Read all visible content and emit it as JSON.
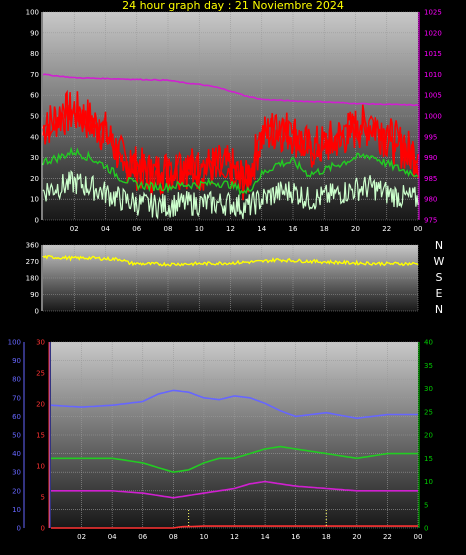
{
  "title": "24 hour graph day : 21 Noviembre 2024",
  "colors": {
    "temperature": "#ff0000",
    "humidity": "#00c000",
    "wind_gust": "#ff0000",
    "wind_speed": "#22cc22",
    "wind_lull": "#ccffcc",
    "pressure": "#d020d0",
    "direction": "#ffff00",
    "sun_marker": "#ffff66",
    "axis_white": "#ffffff",
    "axis_magenta": "#ff00ff",
    "axis_blue": "#6666ff",
    "axis_red": "#ff3333",
    "axis_green": "#00cc00"
  },
  "chart_data": [
    {
      "type": "line",
      "id": "wind-pressure",
      "x_ticks": [
        "02",
        "04",
        "06",
        "08",
        "10",
        "12",
        "14",
        "16",
        "18",
        "20",
        "22",
        "00"
      ],
      "left_axis": {
        "ticks": [
          "0",
          "10",
          "20",
          "30",
          "40",
          "50",
          "60",
          "70",
          "80",
          "90",
          "100"
        ],
        "range": [
          0,
          100
        ]
      },
      "right_axis": {
        "ticks": [
          "975",
          "980",
          "985",
          "990",
          "995",
          "1000",
          "1005",
          "1010",
          "1015",
          "1020",
          "1025"
        ],
        "range": [
          975,
          1025
        ]
      },
      "series": [
        {
          "key": "pressure",
          "axis": "right",
          "x": [
            0,
            2,
            4,
            6,
            8,
            9,
            10,
            11,
            12,
            13,
            14,
            16,
            18,
            20,
            22,
            24
          ],
          "y": [
            1010,
            1009.2,
            1009,
            1008.8,
            1008.6,
            1008,
            1007.6,
            1007,
            1006,
            1004.8,
            1004,
            1003.6,
            1003.4,
            1003,
            1002.8,
            1002.6
          ]
        },
        {
          "key": "wind_gust",
          "axis": "left",
          "x": [
            0,
            1,
            2,
            3,
            4,
            5,
            6,
            7,
            8,
            9,
            10,
            11,
            12,
            13,
            14,
            15,
            16,
            17,
            18,
            19,
            20,
            21,
            22,
            23,
            24
          ],
          "y": [
            44,
            50,
            52,
            48,
            42,
            30,
            25,
            22,
            24,
            26,
            24,
            26,
            25,
            18,
            40,
            44,
            42,
            34,
            36,
            40,
            44,
            46,
            40,
            35,
            30
          ]
        },
        {
          "key": "wind_speed",
          "axis": "left",
          "x": [
            0,
            1,
            2,
            3,
            4,
            5,
            6,
            7,
            8,
            9,
            10,
            11,
            12,
            13,
            14,
            15,
            16,
            17,
            18,
            19,
            20,
            21,
            22,
            23,
            24
          ],
          "y": [
            28,
            30,
            33,
            30,
            26,
            20,
            17,
            16,
            16,
            17,
            17,
            18,
            17,
            13,
            22,
            27,
            28,
            22,
            24,
            27,
            30,
            31,
            27,
            24,
            22
          ]
        },
        {
          "key": "wind_lull",
          "axis": "left",
          "x": [
            0,
            1,
            2,
            3,
            4,
            5,
            6,
            7,
            8,
            9,
            10,
            11,
            12,
            13,
            14,
            15,
            16,
            17,
            18,
            19,
            20,
            21,
            22,
            23,
            24
          ],
          "y": [
            14,
            16,
            18,
            16,
            13,
            10,
            8,
            7,
            7,
            8,
            8,
            8,
            8,
            6,
            10,
            13,
            14,
            10,
            11,
            13,
            15,
            16,
            13,
            11,
            10
          ]
        }
      ]
    },
    {
      "type": "line",
      "id": "wind-direction",
      "x_ticks": [],
      "left_axis": {
        "ticks": [
          "0",
          "90",
          "180",
          "270",
          "360"
        ],
        "range": [
          0,
          360
        ]
      },
      "compass": [
        "N",
        "W",
        "S",
        "E",
        "N"
      ],
      "series": [
        {
          "key": "direction",
          "axis": "left",
          "x": [
            0,
            1,
            2,
            3,
            4,
            5,
            5.5,
            6,
            8,
            10,
            12,
            14,
            15,
            16,
            18,
            20,
            22,
            24
          ],
          "y": [
            295,
            292,
            288,
            290,
            285,
            282,
            262,
            258,
            255,
            258,
            262,
            270,
            280,
            275,
            268,
            262,
            258,
            258
          ]
        }
      ]
    },
    {
      "type": "line",
      "id": "temp-humidity",
      "x_ticks": [
        "02",
        "04",
        "06",
        "08",
        "10",
        "12",
        "14",
        "16",
        "18",
        "20",
        "22",
        "00"
      ],
      "left_axis": {
        "ticks": [
          "0",
          "10",
          "20",
          "30",
          "40",
          "50",
          "60",
          "70",
          "80",
          "90",
          "100"
        ],
        "range": [
          0,
          100
        ]
      },
      "left_axis2": {
        "ticks": [
          "0",
          "5",
          "10",
          "15",
          "20",
          "25",
          "30"
        ],
        "range": [
          0,
          30
        ]
      },
      "right_axis": {
        "ticks": [
          "0",
          "5",
          "10",
          "15",
          "20",
          "25",
          "30",
          "35",
          "40"
        ],
        "range": [
          0,
          40
        ]
      },
      "series": [
        {
          "key": "humidity_pct",
          "color_key": "axis_blue",
          "axis": "left",
          "x": [
            0,
            2,
            4,
            6,
            7,
            8,
            9,
            10,
            11,
            12,
            13,
            14,
            15,
            16,
            17,
            18,
            20,
            22,
            24
          ],
          "y": [
            66,
            65,
            66,
            68,
            72,
            74,
            73,
            70,
            69,
            71,
            70,
            67,
            63,
            60,
            61,
            62,
            59,
            61,
            61
          ]
        },
        {
          "key": "temp_c",
          "color_key": "wind_speed",
          "axis": "right",
          "x": [
            0,
            2,
            4,
            6,
            7,
            8,
            9,
            10,
            11,
            12,
            13,
            14,
            15,
            16,
            18,
            20,
            22,
            24
          ],
          "y": [
            15,
            15,
            15,
            14,
            13,
            12,
            12.5,
            14,
            15,
            15,
            16,
            17,
            17.5,
            17,
            16,
            15,
            16,
            16
          ]
        },
        {
          "key": "dewpoint_c",
          "color_key": "pressure",
          "axis": "right",
          "x": [
            0,
            2,
            4,
            6,
            7,
            8,
            9,
            10,
            11,
            12,
            13,
            14,
            15,
            16,
            18,
            20,
            22,
            24
          ],
          "y": [
            8,
            8,
            8,
            7.5,
            7,
            6.5,
            7,
            7.5,
            8,
            8.5,
            9.5,
            10,
            9.5,
            9,
            8.5,
            8,
            8,
            8
          ]
        },
        {
          "key": "rain_mm",
          "color_key": "axis_red",
          "axis": "left2",
          "x": [
            0,
            4,
            8,
            8.5,
            10,
            14,
            18,
            22,
            24
          ],
          "y": [
            0,
            0,
            0,
            0.2,
            0.3,
            0.3,
            0.3,
            0.3,
            0.3
          ]
        }
      ],
      "markers_hour": [
        9,
        18
      ]
    }
  ]
}
